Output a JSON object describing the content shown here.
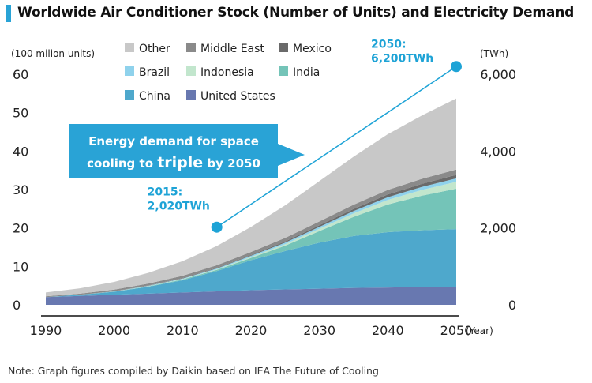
{
  "title": "Worldwide Air Conditioner Stock (Number of Units) and Electricity Demand",
  "note": "Note: Graph figures compiled by Daikin based on IEA The Future of Cooling",
  "colors": {
    "accent": "#29a3d6",
    "callout_bg": "#29a3d6",
    "demand_line": "#1ea3d6"
  },
  "chart_data": {
    "type": "area",
    "stacked": true,
    "x": [
      1990,
      1995,
      2000,
      2005,
      2010,
      2015,
      2020,
      2025,
      2030,
      2035,
      2040,
      2045,
      2050
    ],
    "x_ticks": [
      "1990",
      "2000",
      "2010",
      "2020",
      "2030",
      "2040",
      "2050"
    ],
    "x_unit": "(Year)",
    "y_left": {
      "unit": "(100 milion units)",
      "ticks": [
        "0",
        "10",
        "20",
        "30",
        "40",
        "50",
        "60"
      ],
      "range": [
        0,
        60
      ]
    },
    "y_right": {
      "unit": "(TWh)",
      "ticks": [
        "0",
        "2,000",
        "4,000",
        "6,000"
      ],
      "range": [
        0,
        6000
      ]
    },
    "series": [
      {
        "name": "United States",
        "color": "#6878b0",
        "values": [
          2.0,
          2.3,
          2.6,
          2.9,
          3.2,
          3.5,
          3.8,
          4.0,
          4.2,
          4.4,
          4.5,
          4.6,
          4.7
        ]
      },
      {
        "name": "China",
        "color": "#4ea8cc",
        "values": [
          0.0,
          0.3,
          0.8,
          1.8,
          3.2,
          5.3,
          7.8,
          10.0,
          12.0,
          13.5,
          14.4,
          14.8,
          15.0
        ]
      },
      {
        "name": "India",
        "color": "#74c4b8",
        "values": [
          0.0,
          0.0,
          0.05,
          0.1,
          0.2,
          0.3,
          0.6,
          1.4,
          3.0,
          5.0,
          7.2,
          9.0,
          10.5
        ]
      },
      {
        "name": "Indonesia",
        "color": "#c2e6cd",
        "values": [
          0.0,
          0.0,
          0.0,
          0.05,
          0.1,
          0.15,
          0.25,
          0.4,
          0.6,
          0.9,
          1.2,
          1.5,
          1.8
        ]
      },
      {
        "name": "Brazil",
        "color": "#8fd2ec",
        "values": [
          0.0,
          0.0,
          0.05,
          0.1,
          0.15,
          0.2,
          0.3,
          0.4,
          0.5,
          0.6,
          0.7,
          0.8,
          0.9
        ]
      },
      {
        "name": "Mexico",
        "color": "#6a6a6a",
        "values": [
          0.0,
          0.0,
          0.05,
          0.08,
          0.1,
          0.15,
          0.2,
          0.3,
          0.4,
          0.55,
          0.7,
          0.8,
          0.9
        ]
      },
      {
        "name": "Middle East",
        "color": "#8a8a8a",
        "values": [
          0.2,
          0.3,
          0.4,
          0.5,
          0.6,
          0.7,
          0.8,
          0.9,
          1.0,
          1.1,
          1.2,
          1.3,
          1.4
        ]
      },
      {
        "name": "Other",
        "color": "#c8c8c8",
        "values": [
          1.0,
          1.4,
          2.0,
          2.8,
          3.8,
          5.0,
          6.5,
          8.5,
          10.5,
          12.5,
          14.5,
          16.5,
          18.5
        ]
      }
    ],
    "legend_order": [
      "Other",
      "Middle East",
      "Mexico",
      "Brazil",
      "Indonesia",
      "India",
      "China",
      "United States"
    ],
    "demand_line": {
      "points": [
        {
          "year": 2015,
          "twh": 2020,
          "label_year": "2015:",
          "label_value": "2,020TWh"
        },
        {
          "year": 2050,
          "twh": 6200,
          "label_year": "2050:",
          "label_value": "6,200TWh"
        }
      ]
    },
    "callout": [
      "Energy demand for space",
      "cooling to ",
      "triple",
      " by 2050"
    ]
  }
}
